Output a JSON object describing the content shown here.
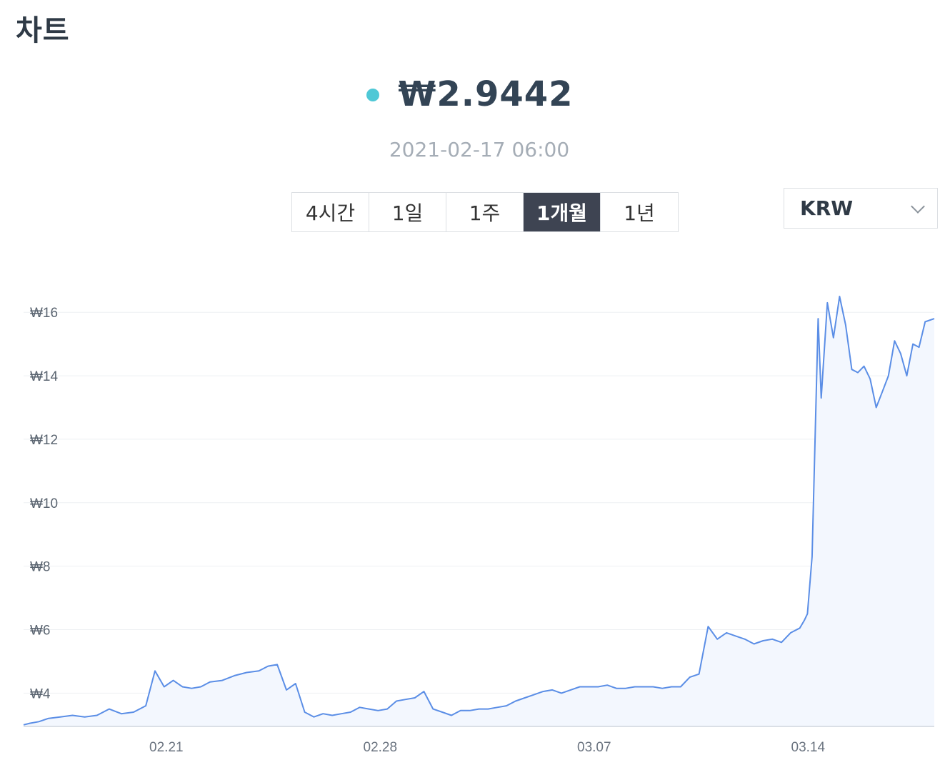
{
  "page": {
    "title": "차트"
  },
  "price": {
    "value": "₩2.9442",
    "timestamp": "2021-02-17 06:00",
    "dot_color": "#4fc8d6"
  },
  "range_tabs": [
    {
      "label": "4시간",
      "active": false
    },
    {
      "label": "1일",
      "active": false
    },
    {
      "label": "1주",
      "active": false
    },
    {
      "label": "1개월",
      "active": true
    },
    {
      "label": "1년",
      "active": false
    }
  ],
  "currency_select": {
    "value": "KRW",
    "icon": "chevron-down-icon"
  },
  "colors": {
    "line": "#5b8ee6",
    "area": "#f3f7fe",
    "grid": "#eef0f3",
    "active_tab": "#3e4452"
  },
  "chart_data": {
    "type": "area",
    "title": "",
    "xlabel": "",
    "ylabel": "",
    "x_ticks": [
      "02.21",
      "02.28",
      "03.07",
      "03.14"
    ],
    "x_tick_days": [
      4.67,
      11.67,
      18.67,
      25.67
    ],
    "y_ticks": [
      "₩4",
      "₩6",
      "₩8",
      "₩10",
      "₩12",
      "₩14",
      "₩16"
    ],
    "y_tick_values": [
      4,
      6,
      8,
      10,
      12,
      14,
      16
    ],
    "xlim": [
      0,
      29.8
    ],
    "ylim": [
      2.95,
      16.5
    ],
    "grid": true,
    "series": [
      {
        "x": [
          0,
          0.2,
          0.5,
          0.8,
          1.2,
          1.6,
          2.0,
          2.4,
          2.8,
          3.2,
          3.6,
          4.0,
          4.3,
          4.6,
          4.9,
          5.2,
          5.5,
          5.8,
          6.1,
          6.5,
          6.9,
          7.3,
          7.7,
          8.0,
          8.3,
          8.6,
          8.9,
          9.2,
          9.5,
          9.8,
          10.1,
          10.4,
          10.7,
          11.0,
          11.3,
          11.6,
          11.9,
          12.2,
          12.5,
          12.8,
          13.1,
          13.4,
          13.7,
          14.0,
          14.3,
          14.6,
          14.9,
          15.2,
          15.5,
          15.8,
          16.1,
          16.4,
          16.7,
          17.0,
          17.3,
          17.6,
          17.9,
          18.2,
          18.5,
          18.8,
          19.1,
          19.4,
          19.7,
          20.0,
          20.3,
          20.6,
          20.9,
          21.2,
          21.5,
          21.8,
          22.1,
          22.4,
          22.7,
          23.0,
          23.3,
          23.6,
          23.9,
          24.2,
          24.5,
          24.8,
          25.1,
          25.4,
          25.55,
          25.65,
          25.8,
          26.0,
          26.1,
          26.3,
          26.5,
          26.7,
          26.9,
          27.1,
          27.3,
          27.5,
          27.7,
          27.9,
          28.1,
          28.3,
          28.5,
          28.7,
          28.9,
          29.1,
          29.3,
          29.5,
          29.8
        ],
        "values": [
          3.0,
          3.05,
          3.1,
          3.2,
          3.25,
          3.3,
          3.25,
          3.3,
          3.5,
          3.35,
          3.4,
          3.6,
          4.7,
          4.2,
          4.4,
          4.2,
          4.15,
          4.2,
          4.35,
          4.4,
          4.55,
          4.65,
          4.7,
          4.85,
          4.9,
          4.1,
          4.3,
          3.4,
          3.25,
          3.35,
          3.3,
          3.35,
          3.4,
          3.55,
          3.5,
          3.45,
          3.5,
          3.75,
          3.8,
          3.85,
          4.05,
          3.5,
          3.4,
          3.3,
          3.45,
          3.45,
          3.5,
          3.5,
          3.55,
          3.6,
          3.75,
          3.85,
          3.95,
          4.05,
          4.1,
          4.0,
          4.1,
          4.2,
          4.2,
          4.2,
          4.25,
          4.15,
          4.15,
          4.2,
          4.2,
          4.2,
          4.15,
          4.2,
          4.2,
          4.5,
          4.6,
          6.1,
          5.7,
          5.9,
          5.8,
          5.7,
          5.55,
          5.65,
          5.7,
          5.6,
          5.9,
          6.05,
          6.3,
          6.5,
          8.3,
          15.8,
          13.3,
          16.3,
          15.2,
          16.5,
          15.6,
          14.2,
          14.1,
          14.3,
          13.9,
          13.0,
          13.5,
          14.0,
          15.1,
          14.7,
          14.0,
          15.0,
          14.9,
          15.7,
          15.8
        ]
      }
    ]
  }
}
